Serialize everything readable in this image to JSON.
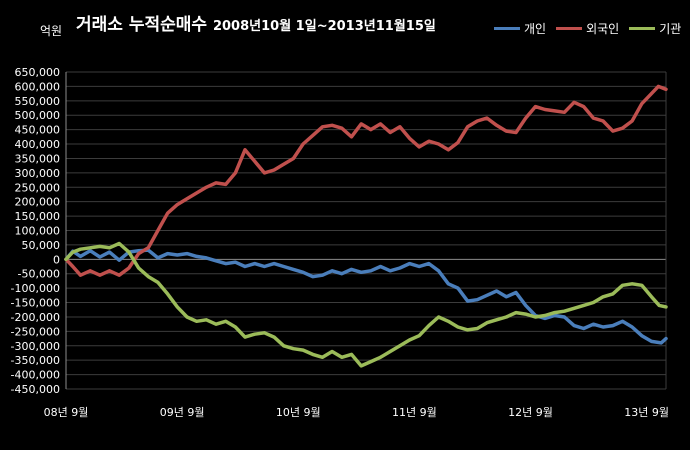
{
  "chart_data": {
    "type": "line",
    "title": "거래소  누적순매수",
    "subtitle": "2008년10월 1일~2013년11월15일",
    "unit_label": "억원",
    "ylim": [
      -450000,
      650000
    ],
    "ytick_step": 50000,
    "yticks": [
      "650,000",
      "600,000",
      "550,000",
      "500,000",
      "450,000",
      "400,000",
      "350,000",
      "300,000",
      "250,000",
      "200,000",
      "150,000",
      "100,000",
      "50,000",
      "0",
      "-50,000",
      "-100,000",
      "-150,000",
      "-200,000",
      "-250,000",
      "-300,000",
      "-350,000",
      "-400,000",
      "-450,000"
    ],
    "xlim": [
      0,
      62
    ],
    "xticks": [
      {
        "label": "08년 9월",
        "x": 0
      },
      {
        "label": "09년 9월",
        "x": 12
      },
      {
        "label": "10년 9월",
        "x": 24
      },
      {
        "label": "11년 9월",
        "x": 36
      },
      {
        "label": "12년 9월",
        "x": 48
      },
      {
        "label": "13년 9월",
        "x": 60
      }
    ],
    "grid": true,
    "legend_position": "top-right",
    "series": [
      {
        "name": "개인",
        "color": "#4a7ebb",
        "values": [
          {
            "x": 0,
            "y": 0
          },
          {
            "x": 0.7,
            "y": 28000
          },
          {
            "x": 1.5,
            "y": 10000
          },
          {
            "x": 2.5,
            "y": 30000
          },
          {
            "x": 3.5,
            "y": 8000
          },
          {
            "x": 4.5,
            "y": 25000
          },
          {
            "x": 5.5,
            "y": -3000
          },
          {
            "x": 6.5,
            "y": 25000
          },
          {
            "x": 7.5,
            "y": 30000
          },
          {
            "x": 8.5,
            "y": 32000
          },
          {
            "x": 9.5,
            "y": 5000
          },
          {
            "x": 10.5,
            "y": 20000
          },
          {
            "x": 11.5,
            "y": 15000
          },
          {
            "x": 12.5,
            "y": 20000
          },
          {
            "x": 13.5,
            "y": 10000
          },
          {
            "x": 14.5,
            "y": 5000
          },
          {
            "x": 15.5,
            "y": -5000
          },
          {
            "x": 16.5,
            "y": -15000
          },
          {
            "x": 17.5,
            "y": -10000
          },
          {
            "x": 18.5,
            "y": -25000
          },
          {
            "x": 19.5,
            "y": -15000
          },
          {
            "x": 20.5,
            "y": -25000
          },
          {
            "x": 21.5,
            "y": -15000
          },
          {
            "x": 22.5,
            "y": -25000
          },
          {
            "x": 23.5,
            "y": -35000
          },
          {
            "x": 24.5,
            "y": -45000
          },
          {
            "x": 25.5,
            "y": -60000
          },
          {
            "x": 26.5,
            "y": -55000
          },
          {
            "x": 27.5,
            "y": -40000
          },
          {
            "x": 28.5,
            "y": -50000
          },
          {
            "x": 29.5,
            "y": -35000
          },
          {
            "x": 30.5,
            "y": -45000
          },
          {
            "x": 31.5,
            "y": -40000
          },
          {
            "x": 32.5,
            "y": -25000
          },
          {
            "x": 33.5,
            "y": -40000
          },
          {
            "x": 34.5,
            "y": -30000
          },
          {
            "x": 35.5,
            "y": -15000
          },
          {
            "x": 36.5,
            "y": -25000
          },
          {
            "x": 37.5,
            "y": -15000
          },
          {
            "x": 38.5,
            "y": -40000
          },
          {
            "x": 39.5,
            "y": -85000
          },
          {
            "x": 40.5,
            "y": -100000
          },
          {
            "x": 41.5,
            "y": -145000
          },
          {
            "x": 42.5,
            "y": -140000
          },
          {
            "x": 43.5,
            "y": -125000
          },
          {
            "x": 44.5,
            "y": -110000
          },
          {
            "x": 45.5,
            "y": -130000
          },
          {
            "x": 46.5,
            "y": -115000
          },
          {
            "x": 47.5,
            "y": -160000
          },
          {
            "x": 48.5,
            "y": -195000
          },
          {
            "x": 49.5,
            "y": -205000
          },
          {
            "x": 50.5,
            "y": -195000
          },
          {
            "x": 51.5,
            "y": -200000
          },
          {
            "x": 52.5,
            "y": -230000
          },
          {
            "x": 53.5,
            "y": -240000
          },
          {
            "x": 54.5,
            "y": -225000
          },
          {
            "x": 55.5,
            "y": -235000
          },
          {
            "x": 56.5,
            "y": -230000
          },
          {
            "x": 57.5,
            "y": -215000
          },
          {
            "x": 58.5,
            "y": -235000
          },
          {
            "x": 59.5,
            "y": -265000
          },
          {
            "x": 60.5,
            "y": -285000
          },
          {
            "x": 61.5,
            "y": -290000
          },
          {
            "x": 62,
            "y": -275000
          }
        ]
      },
      {
        "name": "외국인",
        "color": "#c0504d",
        "values": [
          {
            "x": 0,
            "y": 0
          },
          {
            "x": 0.7,
            "y": -25000
          },
          {
            "x": 1.5,
            "y": -55000
          },
          {
            "x": 2.5,
            "y": -40000
          },
          {
            "x": 3.5,
            "y": -55000
          },
          {
            "x": 4.5,
            "y": -40000
          },
          {
            "x": 5.5,
            "y": -55000
          },
          {
            "x": 6.5,
            "y": -30000
          },
          {
            "x": 7.5,
            "y": 20000
          },
          {
            "x": 8.5,
            "y": 40000
          },
          {
            "x": 9.5,
            "y": 100000
          },
          {
            "x": 10.5,
            "y": 160000
          },
          {
            "x": 11.5,
            "y": 190000
          },
          {
            "x": 12.5,
            "y": 210000
          },
          {
            "x": 13.5,
            "y": 230000
          },
          {
            "x": 14.5,
            "y": 250000
          },
          {
            "x": 15.5,
            "y": 265000
          },
          {
            "x": 16.5,
            "y": 260000
          },
          {
            "x": 17.5,
            "y": 300000
          },
          {
            "x": 18.5,
            "y": 380000
          },
          {
            "x": 19.5,
            "y": 340000
          },
          {
            "x": 20.5,
            "y": 300000
          },
          {
            "x": 21.5,
            "y": 310000
          },
          {
            "x": 22.5,
            "y": 330000
          },
          {
            "x": 23.5,
            "y": 350000
          },
          {
            "x": 24.5,
            "y": 400000
          },
          {
            "x": 25.5,
            "y": 430000
          },
          {
            "x": 26.5,
            "y": 460000
          },
          {
            "x": 27.5,
            "y": 465000
          },
          {
            "x": 28.5,
            "y": 455000
          },
          {
            "x": 29.5,
            "y": 425000
          },
          {
            "x": 30.5,
            "y": 470000
          },
          {
            "x": 31.5,
            "y": 450000
          },
          {
            "x": 32.5,
            "y": 470000
          },
          {
            "x": 33.5,
            "y": 440000
          },
          {
            "x": 34.5,
            "y": 460000
          },
          {
            "x": 35.5,
            "y": 420000
          },
          {
            "x": 36.5,
            "y": 390000
          },
          {
            "x": 37.5,
            "y": 410000
          },
          {
            "x": 38.5,
            "y": 400000
          },
          {
            "x": 39.5,
            "y": 380000
          },
          {
            "x": 40.5,
            "y": 405000
          },
          {
            "x": 41.5,
            "y": 460000
          },
          {
            "x": 42.5,
            "y": 480000
          },
          {
            "x": 43.5,
            "y": 490000
          },
          {
            "x": 44.5,
            "y": 465000
          },
          {
            "x": 45.5,
            "y": 445000
          },
          {
            "x": 46.5,
            "y": 440000
          },
          {
            "x": 47.5,
            "y": 490000
          },
          {
            "x": 48.5,
            "y": 530000
          },
          {
            "x": 49.5,
            "y": 520000
          },
          {
            "x": 50.5,
            "y": 515000
          },
          {
            "x": 51.5,
            "y": 510000
          },
          {
            "x": 52.5,
            "y": 545000
          },
          {
            "x": 53.5,
            "y": 530000
          },
          {
            "x": 54.5,
            "y": 490000
          },
          {
            "x": 55.5,
            "y": 480000
          },
          {
            "x": 56.5,
            "y": 445000
          },
          {
            "x": 57.5,
            "y": 455000
          },
          {
            "x": 58.5,
            "y": 480000
          },
          {
            "x": 59.5,
            "y": 540000
          },
          {
            "x": 60.5,
            "y": 575000
          },
          {
            "x": 61.2,
            "y": 600000
          },
          {
            "x": 62,
            "y": 590000
          }
        ]
      },
      {
        "name": "기관",
        "color": "#9bbb59",
        "values": [
          {
            "x": 0,
            "y": 0
          },
          {
            "x": 0.7,
            "y": 25000
          },
          {
            "x": 1.5,
            "y": 35000
          },
          {
            "x": 2.5,
            "y": 40000
          },
          {
            "x": 3.5,
            "y": 45000
          },
          {
            "x": 4.5,
            "y": 40000
          },
          {
            "x": 5.5,
            "y": 55000
          },
          {
            "x": 6.5,
            "y": 25000
          },
          {
            "x": 7.5,
            "y": -30000
          },
          {
            "x": 8.5,
            "y": -60000
          },
          {
            "x": 9.5,
            "y": -80000
          },
          {
            "x": 10.5,
            "y": -120000
          },
          {
            "x": 11.5,
            "y": -165000
          },
          {
            "x": 12.5,
            "y": -200000
          },
          {
            "x": 13.5,
            "y": -215000
          },
          {
            "x": 14.5,
            "y": -210000
          },
          {
            "x": 15.5,
            "y": -225000
          },
          {
            "x": 16.5,
            "y": -215000
          },
          {
            "x": 17.5,
            "y": -235000
          },
          {
            "x": 18.5,
            "y": -270000
          },
          {
            "x": 19.5,
            "y": -260000
          },
          {
            "x": 20.5,
            "y": -255000
          },
          {
            "x": 21.5,
            "y": -270000
          },
          {
            "x": 22.5,
            "y": -300000
          },
          {
            "x": 23.5,
            "y": -310000
          },
          {
            "x": 24.5,
            "y": -315000
          },
          {
            "x": 25.5,
            "y": -330000
          },
          {
            "x": 26.5,
            "y": -340000
          },
          {
            "x": 27.5,
            "y": -320000
          },
          {
            "x": 28.5,
            "y": -340000
          },
          {
            "x": 29.5,
            "y": -330000
          },
          {
            "x": 30.5,
            "y": -370000
          },
          {
            "x": 31.5,
            "y": -355000
          },
          {
            "x": 32.5,
            "y": -340000
          },
          {
            "x": 33.5,
            "y": -320000
          },
          {
            "x": 34.5,
            "y": -300000
          },
          {
            "x": 35.5,
            "y": -280000
          },
          {
            "x": 36.5,
            "y": -265000
          },
          {
            "x": 37.5,
            "y": -230000
          },
          {
            "x": 38.5,
            "y": -200000
          },
          {
            "x": 39.5,
            "y": -215000
          },
          {
            "x": 40.5,
            "y": -235000
          },
          {
            "x": 41.5,
            "y": -245000
          },
          {
            "x": 42.5,
            "y": -240000
          },
          {
            "x": 43.5,
            "y": -220000
          },
          {
            "x": 44.5,
            "y": -210000
          },
          {
            "x": 45.5,
            "y": -200000
          },
          {
            "x": 46.5,
            "y": -185000
          },
          {
            "x": 47.5,
            "y": -190000
          },
          {
            "x": 48.5,
            "y": -200000
          },
          {
            "x": 49.5,
            "y": -195000
          },
          {
            "x": 50.5,
            "y": -185000
          },
          {
            "x": 51.5,
            "y": -180000
          },
          {
            "x": 52.5,
            "y": -170000
          },
          {
            "x": 53.5,
            "y": -160000
          },
          {
            "x": 54.5,
            "y": -150000
          },
          {
            "x": 55.5,
            "y": -130000
          },
          {
            "x": 56.5,
            "y": -120000
          },
          {
            "x": 57.5,
            "y": -90000
          },
          {
            "x": 58.5,
            "y": -85000
          },
          {
            "x": 59.5,
            "y": -90000
          },
          {
            "x": 60.5,
            "y": -130000
          },
          {
            "x": 61.3,
            "y": -160000
          },
          {
            "x": 62,
            "y": -165000
          }
        ]
      }
    ]
  }
}
